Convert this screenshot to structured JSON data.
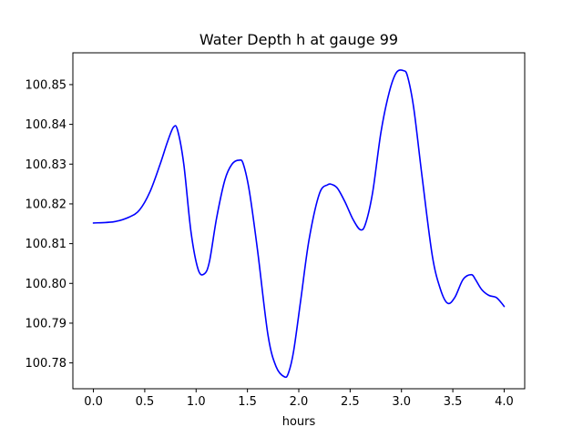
{
  "chart_data": {
    "type": "line",
    "title": "Water Depth h at gauge 99",
    "xlabel": "hours",
    "ylabel": "",
    "xlim": [
      -0.2,
      4.2
    ],
    "ylim": [
      100.7735,
      100.858
    ],
    "xticks": [
      0.0,
      0.5,
      1.0,
      1.5,
      2.0,
      2.5,
      3.0,
      3.5,
      4.0
    ],
    "xtick_labels": [
      "0.0",
      "0.5",
      "1.0",
      "1.5",
      "2.0",
      "2.5",
      "3.0",
      "3.5",
      "4.0"
    ],
    "yticks": [
      100.78,
      100.79,
      100.8,
      100.81,
      100.82,
      100.83,
      100.84,
      100.85
    ],
    "ytick_labels": [
      "100.78",
      "100.79",
      "100.80",
      "100.81",
      "100.82",
      "100.83",
      "100.84",
      "100.85"
    ],
    "grid": false,
    "series": [
      {
        "color": "#0000ff",
        "x": [
          0.0,
          0.2,
          0.35,
          0.45,
          0.55,
          0.65,
          0.72,
          0.78,
          0.82,
          0.88,
          0.95,
          1.02,
          1.08,
          1.13,
          1.2,
          1.28,
          1.35,
          1.42,
          1.46,
          1.52,
          1.6,
          1.7,
          1.78,
          1.86,
          1.9,
          1.95,
          2.02,
          2.1,
          2.2,
          2.28,
          2.33,
          2.38,
          2.45,
          2.53,
          2.6,
          2.65,
          2.72,
          2.8,
          2.88,
          2.95,
          3.02,
          3.06,
          3.12,
          3.2,
          3.3,
          3.38,
          3.45,
          3.52,
          3.6,
          3.68,
          3.72,
          3.78,
          3.85,
          3.92,
          3.97,
          4.0
        ],
        "y": [
          100.8152,
          100.8155,
          100.8167,
          100.8185,
          100.823,
          100.83,
          100.8355,
          100.8393,
          100.8385,
          100.83,
          100.813,
          100.8035,
          100.8024,
          100.8055,
          100.8165,
          100.826,
          100.83,
          100.831,
          100.83,
          100.823,
          100.808,
          100.787,
          100.779,
          100.7765,
          100.7775,
          100.783,
          100.796,
          100.811,
          100.8225,
          100.8248,
          100.8248,
          100.8238,
          100.8205,
          100.816,
          100.8135,
          100.815,
          100.823,
          100.838,
          100.848,
          100.853,
          100.8535,
          100.852,
          100.844,
          100.827,
          100.807,
          100.7985,
          100.795,
          100.7965,
          100.801,
          100.8022,
          100.801,
          100.7985,
          100.797,
          100.7965,
          100.7952,
          100.7942
        ]
      }
    ]
  }
}
